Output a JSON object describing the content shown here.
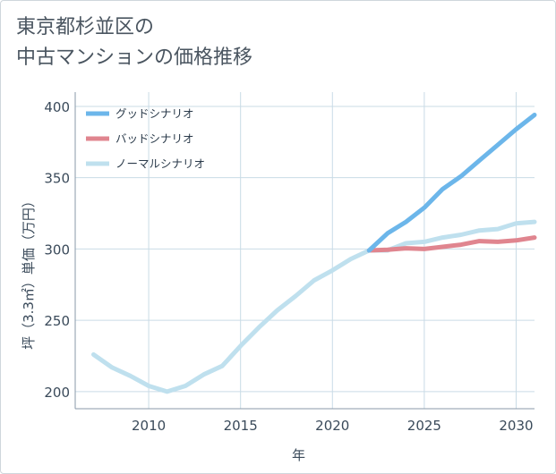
{
  "title": {
    "line1": "東京都杉並区の",
    "line2": "中古マンションの価格推移"
  },
  "colors": {
    "good": "#6cb6ea",
    "bad": "#e0858f",
    "normal": "#bfe0ee",
    "grid": "#c9dbe6",
    "axis": "#8a9aa8"
  },
  "chart_data": {
    "type": "line",
    "title": "東京都杉並区の中古マンションの価格推移",
    "xlabel": "年",
    "ylabel": "坪（3.3㎡）単価（万円）",
    "xlim": [
      2006,
      2031
    ],
    "ylim": [
      188,
      410
    ],
    "x_ticks": [
      2010,
      2015,
      2020,
      2025,
      2030
    ],
    "y_ticks": [
      200,
      250,
      300,
      350,
      400
    ],
    "legend_position": "top-left",
    "series": [
      {
        "name": "グッドシナリオ",
        "color": "#6cb6ea",
        "x": [
          2022,
          2023,
          2024,
          2025,
          2026,
          2027,
          2028,
          2029,
          2030,
          2031
        ],
        "values": [
          299,
          311,
          319,
          329,
          342,
          351,
          362,
          373,
          384,
          394
        ]
      },
      {
        "name": "バッドシナリオ",
        "color": "#e0858f",
        "x": [
          2022,
          2023,
          2024,
          2025,
          2026,
          2027,
          2028,
          2029,
          2030,
          2031
        ],
        "values": [
          299,
          299.5,
          300.5,
          300,
          301.5,
          303,
          305.5,
          305,
          306,
          308
        ]
      },
      {
        "name": "ノーマルシナリオ",
        "color": "#bfe0ee",
        "x": [
          2007,
          2008,
          2009,
          2010,
          2011,
          2012,
          2013,
          2014,
          2015,
          2016,
          2017,
          2018,
          2019,
          2020,
          2021,
          2022,
          2023,
          2024,
          2025,
          2026,
          2027,
          2028,
          2029,
          2030,
          2031
        ],
        "values": [
          226,
          217,
          211,
          204,
          200,
          204,
          212,
          218,
          232,
          245,
          257,
          267,
          278,
          285,
          293,
          299,
          299,
          304,
          305,
          308,
          310,
          313,
          314,
          318,
          319
        ]
      }
    ]
  }
}
